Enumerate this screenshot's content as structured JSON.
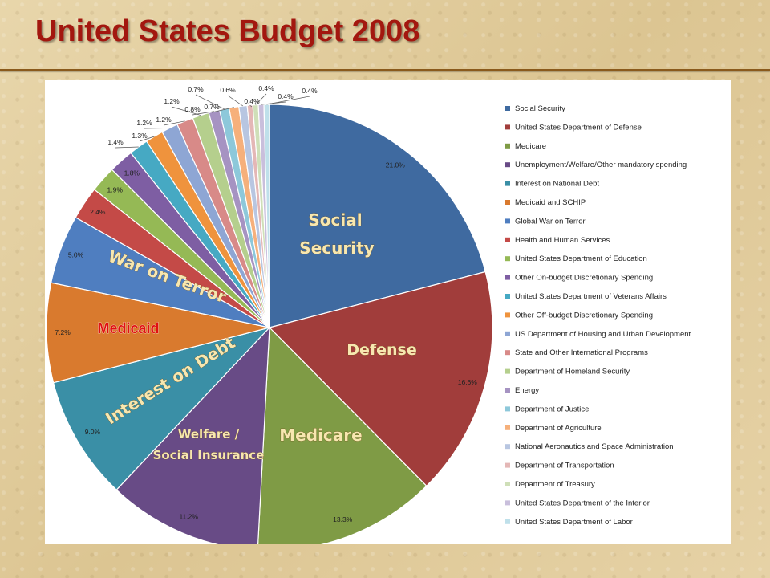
{
  "slide": {
    "title": "United States Budget 2008"
  },
  "chart_data": {
    "type": "pie",
    "title": "",
    "legend_position": "right",
    "categories": [
      "Social Security",
      "United States Department of Defense",
      "Medicare",
      "Unemployment/Welfare/Other mandatory spending",
      "Interest on National Debt",
      "Medicaid and SCHIP",
      "Global War on Terror",
      "Health and Human Services",
      "United States Department of Education",
      "Other On-budget Discretionary Spending",
      "United States Department of Veterans Affairs",
      "Other Off-budget Discretionary Spending",
      "US Department of Housing and Urban Development",
      "State and Other International Programs",
      "Department of Homeland Security",
      "Energy",
      "Department of Justice",
      "Department of Agriculture",
      "National Aeronautics and Space Administration",
      "Department of Transportation",
      "Department of Treasury",
      "United States Department of the Interior",
      "United States Department of Labor"
    ],
    "values": [
      21.0,
      16.6,
      13.3,
      11.2,
      9.0,
      7.2,
      5.0,
      2.4,
      1.9,
      1.8,
      1.4,
      1.3,
      1.2,
      1.2,
      1.2,
      0.8,
      0.7,
      0.7,
      0.6,
      0.4,
      0.4,
      0.4,
      0.4
    ],
    "value_labels": [
      "21.0%",
      "16.6%",
      "13.3%",
      "11.2%",
      "9.0%",
      "7.2%",
      "5.0%",
      "2.4%",
      "1.9%",
      "1.8%",
      "1.4%",
      "1.3%",
      "1.2%",
      "1.2%",
      "1.2%",
      "0.8%",
      "0.7%",
      "0.7%",
      "0.6%",
      "0.4%",
      "0.4%",
      "0.4%",
      "0.4%"
    ],
    "colors": [
      "#3f6aa0",
      "#a13d3b",
      "#7f9b45",
      "#684b86",
      "#3a8fa6",
      "#d97a2e",
      "#4f7ec0",
      "#c44a47",
      "#95b955",
      "#7e5ea3",
      "#46a9c3",
      "#ef933d",
      "#8ea6d4",
      "#d88a88",
      "#b5cf8d",
      "#a693c2",
      "#8dc8da",
      "#f6b07b",
      "#b8c6e1",
      "#e4b7b6",
      "#cfdfb8",
      "#c9bfdc",
      "#bfe0ea"
    ],
    "annotations": {
      "social_security": [
        "Social",
        "Security"
      ],
      "defense": "Defense",
      "medicare": "Medicare",
      "welfare": [
        "Welfare /",
        "Social Insurance"
      ],
      "interest": "Interest on Debt",
      "medicaid": "Medicaid",
      "war": "War on Terror"
    }
  }
}
